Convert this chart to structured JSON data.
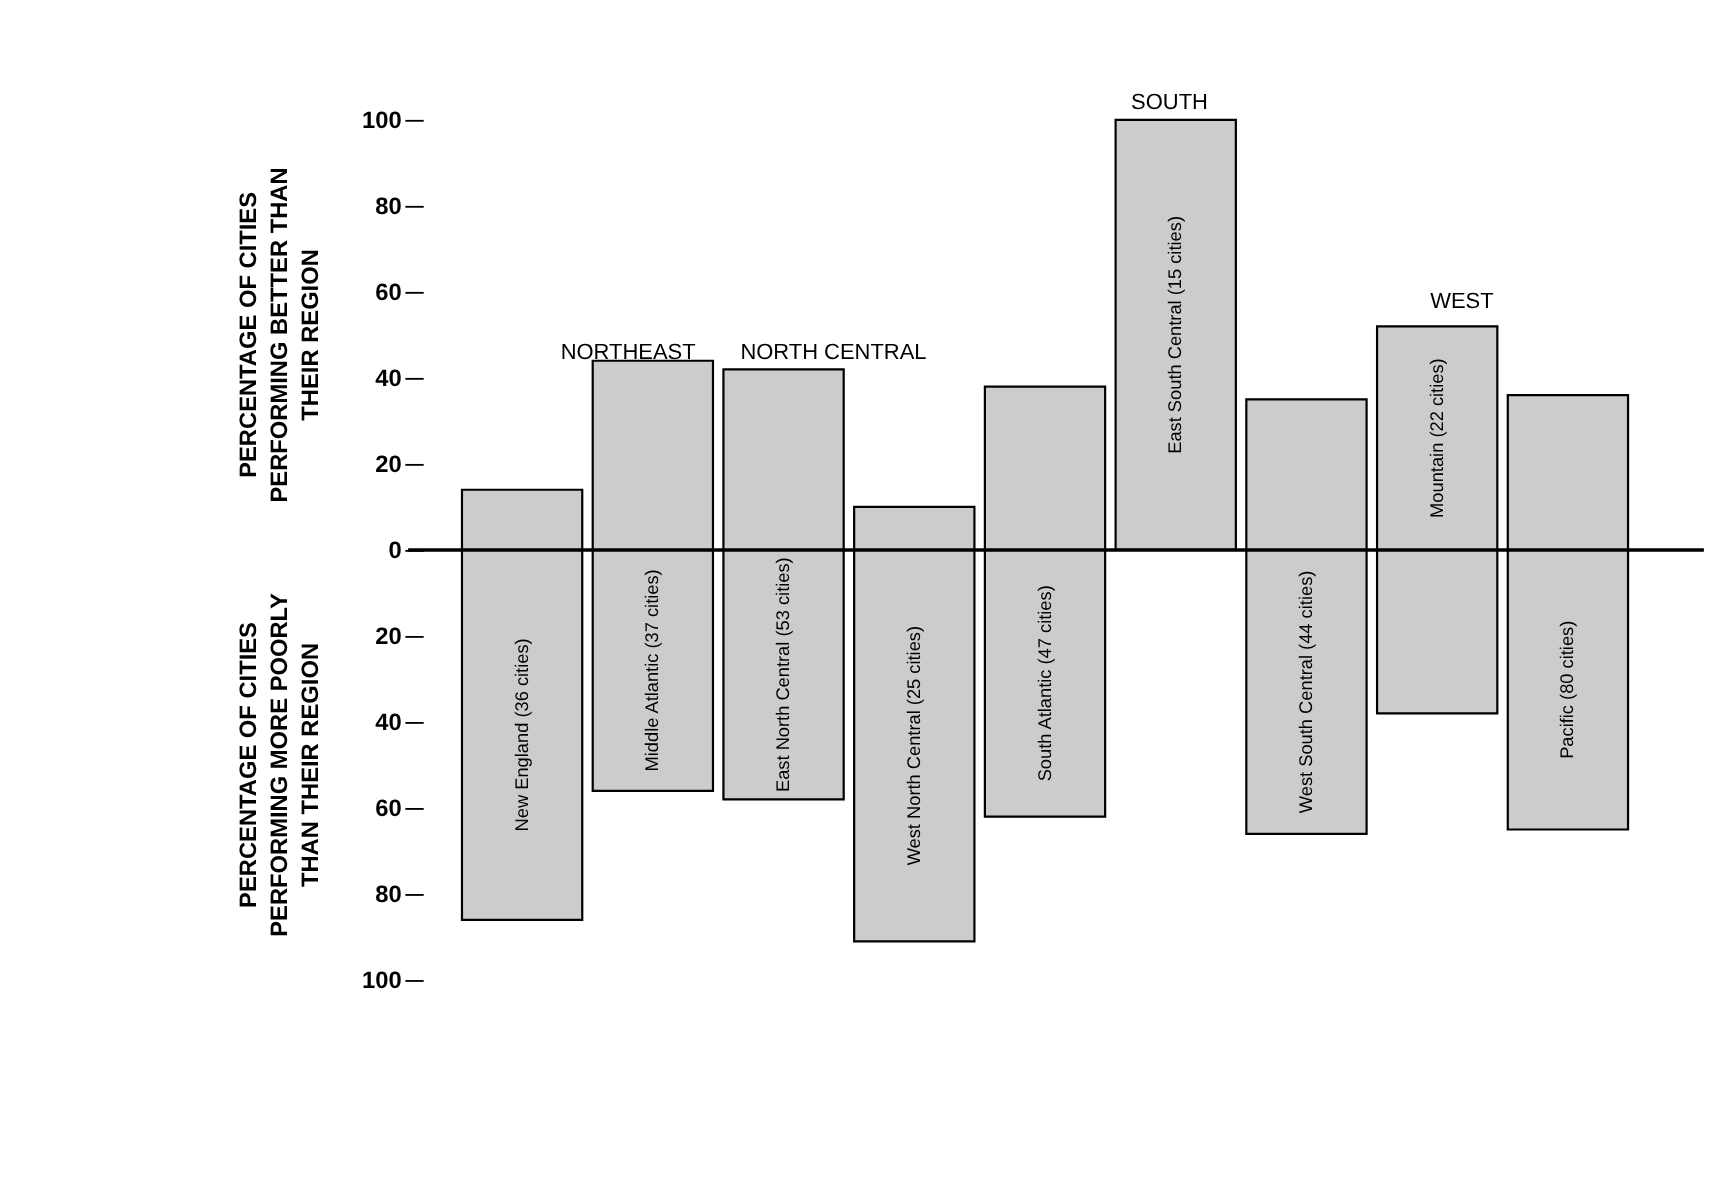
{
  "chart_data": {
    "type": "bar",
    "ylabel": "PERCENTAGE OF CITIES PERFORMING BETTER THAN THEIR REGION",
    "categories": [
      "New England (36 cities)",
      "Middle Atlantic (37 cities)",
      "East North Central (53 cities)",
      "West North Central (25 cities)",
      "South Atlantic (47 cities)",
      "East South Central (15 cities)",
      "West South Central (44 cities)",
      "Mountain (22 cities)",
      "Pacific (80 cities)"
    ],
    "base": [
      -86,
      -56,
      -58,
      -91,
      -62,
      0,
      -66,
      -38,
      -65
    ],
    "values": [
      100,
      100,
      100,
      101,
      100,
      100,
      101,
      90,
      101
    ],
    "color": "#cccccc",
    "ylim": [
      -100,
      100
    ],
    "yticks": [
      {
        "value": -100,
        "label": "100"
      },
      {
        "value": -80,
        "label": "80"
      },
      {
        "value": -60,
        "label": "60"
      },
      {
        "value": -40,
        "label": "40"
      },
      {
        "value": -20,
        "label": "20"
      },
      0,
      20,
      40,
      60,
      80,
      100
    ],
    "ref_lines": [
      {
        "axis": "y",
        "value": 0
      }
    ],
    "annotations": [
      "NORTHEAST",
      "NORTH CENTRAL",
      "SOUTH",
      "WEST",
      "PERCENTAGE OF CITIES PERFORMING MORE POORLY THAN THEIR REGION"
    ],
    "tick_labels": "y",
    "grid": false
  }
}
